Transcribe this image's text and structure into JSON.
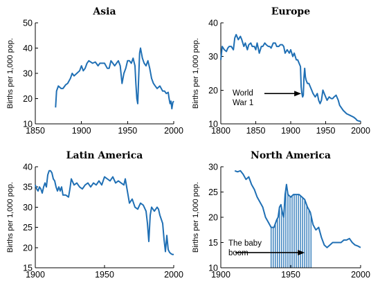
{
  "chart_data": [
    {
      "type": "line",
      "title": "Asia",
      "ylabel": "Births per 1,000 pop.",
      "xlim": [
        1850,
        2000
      ],
      "ylim": [
        10,
        50
      ],
      "xticks": [
        "1850",
        "1900",
        "1950",
        "2000"
      ],
      "yticks": [
        "10",
        "20",
        "30",
        "40",
        "50"
      ],
      "color": "#1f6fb4",
      "series": [
        {
          "x": [
            1872,
            1873,
            1875,
            1878,
            1880,
            1883,
            1885,
            1888,
            1890,
            1892,
            1895,
            1898,
            1900,
            1902,
            1904,
            1906,
            1908,
            1910,
            1912,
            1915,
            1918,
            1920,
            1923,
            1925,
            1928,
            1930,
            1932,
            1934,
            1936,
            1938,
            1940,
            1942,
            1944,
            1946,
            1948,
            1950,
            1952,
            1954,
            1956,
            1958,
            1959,
            1960,
            1961,
            1962,
            1963,
            1964,
            1966,
            1968,
            1970,
            1972,
            1974,
            1976,
            1978,
            1980,
            1982,
            1985,
            1988,
            1990,
            1992,
            1994,
            1995,
            1996,
            1997,
            1998,
            1999,
            2000
          ],
          "values": [
            16.5,
            23,
            25,
            24,
            24,
            25.5,
            26,
            28,
            30,
            29,
            30,
            31,
            33,
            31,
            32,
            34,
            35,
            34.5,
            34,
            34.5,
            33,
            34,
            34,
            34,
            32,
            32,
            35,
            34,
            33,
            34,
            35,
            33,
            26,
            30,
            32,
            35,
            35,
            34,
            36,
            33,
            26,
            20,
            18,
            28,
            38,
            40,
            36,
            34,
            33,
            35,
            32,
            28,
            26,
            25,
            24,
            25,
            23,
            23,
            22,
            22.5,
            20,
            18,
            19,
            16,
            18.5,
            19
          ]
        }
      ]
    },
    {
      "type": "line",
      "title": "Europe",
      "ylabel": "Births per 1,000 pop.",
      "xlim": [
        1800,
        2000
      ],
      "ylim": [
        10,
        40
      ],
      "xticks": [
        "1800",
        "1850",
        "1900",
        "1950",
        "2000"
      ],
      "yticks": [
        "10",
        "20",
        "30",
        "40"
      ],
      "color": "#1f6fb4",
      "annotation": {
        "lines": [
          "World",
          "War 1"
        ],
        "target": [
          1917,
          19
        ]
      },
      "series": [
        {
          "x": [
            1800,
            1802,
            1805,
            1808,
            1810,
            1812,
            1815,
            1818,
            1820,
            1822,
            1825,
            1828,
            1830,
            1833,
            1835,
            1838,
            1840,
            1843,
            1845,
            1848,
            1850,
            1852,
            1855,
            1858,
            1860,
            1863,
            1865,
            1868,
            1870,
            1872,
            1875,
            1878,
            1880,
            1883,
            1885,
            1888,
            1890,
            1892,
            1895,
            1898,
            1900,
            1903,
            1905,
            1908,
            1910,
            1912,
            1914,
            1915,
            1916,
            1917,
            1918,
            1919,
            1920,
            1921,
            1922,
            1924,
            1926,
            1928,
            1930,
            1932,
            1935,
            1938,
            1940,
            1942,
            1944,
            1946,
            1948,
            1950,
            1952,
            1955,
            1958,
            1960,
            1962,
            1965,
            1968,
            1970,
            1975,
            1980,
            1985,
            1990,
            1993,
            1995,
            1998,
            2000
          ],
          "values": [
            29,
            33,
            32,
            31.5,
            32.5,
            33,
            33,
            32,
            35.5,
            36.5,
            35,
            36,
            35,
            33,
            34,
            32,
            33.5,
            34,
            33,
            33,
            32,
            34,
            31,
            33,
            33,
            34,
            33.5,
            33,
            33,
            32.5,
            34,
            34,
            33,
            33,
            33.5,
            33.5,
            33,
            31,
            32,
            31,
            32,
            30,
            31,
            29,
            29,
            28,
            27,
            21,
            19,
            18,
            18.5,
            24,
            26.5,
            24,
            23,
            22,
            22,
            21,
            20,
            19,
            18,
            19,
            17,
            16,
            17,
            20,
            19,
            18,
            17,
            18,
            17.5,
            17.5,
            18,
            18.5,
            17,
            15.5,
            14,
            13,
            12.5,
            12,
            11.5,
            11,
            10.8,
            10.8
          ]
        }
      ]
    },
    {
      "type": "line",
      "title": "Latin America",
      "ylabel": "Births per 1,000 pop.",
      "xlim": [
        1900,
        2000
      ],
      "ylim": [
        15,
        40
      ],
      "xticks": [
        "1900",
        "1950",
        "2000"
      ],
      "yticks": [
        "15",
        "20",
        "25",
        "30",
        "35",
        "40"
      ],
      "color": "#1f6fb4",
      "series": [
        {
          "x": [
            1900,
            1901,
            1902,
            1903,
            1904,
            1905,
            1906,
            1907,
            1908,
            1909,
            1910,
            1911,
            1912,
            1913,
            1914,
            1915,
            1916,
            1917,
            1918,
            1919,
            1920,
            1922,
            1924,
            1925,
            1926,
            1928,
            1930,
            1932,
            1934,
            1936,
            1938,
            1940,
            1942,
            1944,
            1946,
            1948,
            1950,
            1952,
            1954,
            1956,
            1958,
            1960,
            1962,
            1964,
            1965,
            1966,
            1968,
            1970,
            1972,
            1974,
            1976,
            1978,
            1980,
            1981,
            1982,
            1983,
            1984,
            1986,
            1988,
            1989,
            1990,
            1992,
            1993,
            1994,
            1995,
            1996,
            1997,
            1998,
            1999,
            2000
          ],
          "values": [
            35.5,
            34.5,
            34,
            35,
            34.5,
            33.5,
            35,
            36,
            35,
            38,
            39,
            39,
            38.5,
            37,
            36.5,
            35,
            34,
            35,
            34,
            35,
            33,
            33,
            32.5,
            34.5,
            37,
            35.5,
            36,
            35,
            34.5,
            35.5,
            36,
            35,
            36,
            35.5,
            36.5,
            35.5,
            37.5,
            37,
            36.5,
            37.5,
            36,
            36.5,
            36,
            35.5,
            37,
            35,
            31,
            32,
            30,
            29.5,
            31,
            30.5,
            29,
            26,
            21.5,
            28,
            30,
            29,
            30,
            29.5,
            28,
            26,
            22,
            19,
            23,
            19.5,
            18.8,
            18.5,
            18.3,
            18.3
          ]
        }
      ]
    },
    {
      "type": "line",
      "title": "North America",
      "ylabel": "Births per 1,000 pop.",
      "xlim": [
        1900,
        2000
      ],
      "ylim": [
        10,
        30
      ],
      "xticks": [
        "1900",
        "1950",
        "2000"
      ],
      "yticks": [
        "10",
        "15",
        "20",
        "25",
        "30"
      ],
      "color": "#1f6fb4",
      "annotation": {
        "lines": [
          "The baby",
          "boom"
        ],
        "target": [
          1961,
          13
        ]
      },
      "shade_x": [
        1936,
        1965
      ],
      "series": [
        {
          "x": [
            1910,
            1912,
            1914,
            1916,
            1918,
            1920,
            1922,
            1924,
            1926,
            1928,
            1930,
            1932,
            1934,
            1936,
            1938,
            1940,
            1941,
            1942,
            1943,
            1944,
            1945,
            1946,
            1947,
            1948,
            1950,
            1952,
            1954,
            1956,
            1958,
            1960,
            1962,
            1964,
            1966,
            1968,
            1970,
            1972,
            1974,
            1976,
            1978,
            1980,
            1982,
            1984,
            1986,
            1988,
            1990,
            1992,
            1994,
            1996,
            1998,
            2000
          ],
          "values": [
            29.2,
            29,
            29.2,
            28.5,
            27.5,
            28,
            26.5,
            25.5,
            24,
            23,
            22,
            20,
            19,
            18,
            18,
            19.5,
            20,
            22,
            22.5,
            21,
            20,
            24.5,
            26.5,
            24.5,
            24,
            24.5,
            24.5,
            24.5,
            24,
            23.5,
            22,
            21,
            18.5,
            17.5,
            18,
            16,
            14.5,
            14,
            14.5,
            15,
            15,
            15,
            15,
            15.5,
            15.5,
            15.8,
            15,
            14.5,
            14.3,
            14
          ]
        }
      ]
    }
  ]
}
